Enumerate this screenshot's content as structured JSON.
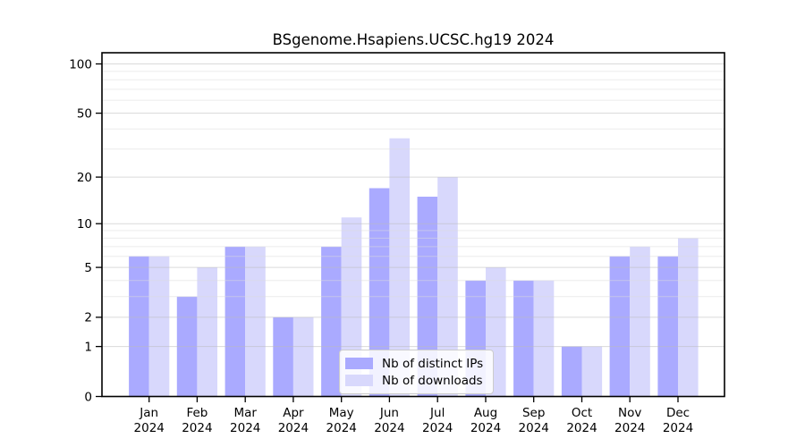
{
  "chart_data": {
    "type": "bar",
    "title": "BSgenome.Hsapiens.UCSC.hg19 2024",
    "xlabel": "",
    "ylabel": "",
    "categories": [
      "Jan 2024",
      "Feb 2024",
      "Mar 2024",
      "Apr 2024",
      "May 2024",
      "Jun 2024",
      "Jul 2024",
      "Aug 2024",
      "Sep 2024",
      "Oct 2024",
      "Nov 2024",
      "Dec 2024"
    ],
    "series": [
      {
        "name": "Nb of distinct IPs",
        "color": "#aaaaff",
        "values": [
          6,
          3,
          7,
          2,
          7,
          17,
          15,
          4,
          4,
          1,
          6,
          6
        ]
      },
      {
        "name": "Nb of downloads",
        "color": "#d8d8fc",
        "values": [
          6,
          5,
          7,
          2,
          11,
          35,
          20,
          5,
          4,
          1,
          7,
          8
        ]
      }
    ],
    "yscale": "log1p",
    "ylim": [
      0,
      117
    ],
    "y_ticks": [
      0,
      1,
      2,
      5,
      10,
      20,
      50,
      100
    ],
    "y_minor_gridlines": [
      3,
      4,
      6,
      7,
      8,
      9,
      30,
      40,
      60,
      70,
      80,
      90
    ],
    "grid": true,
    "legend_position": "lower center",
    "colors": {
      "axis": "#000000",
      "major_grid": "#bbbbbb",
      "minor_grid": "#dddddd",
      "background": "#ffffff"
    }
  }
}
